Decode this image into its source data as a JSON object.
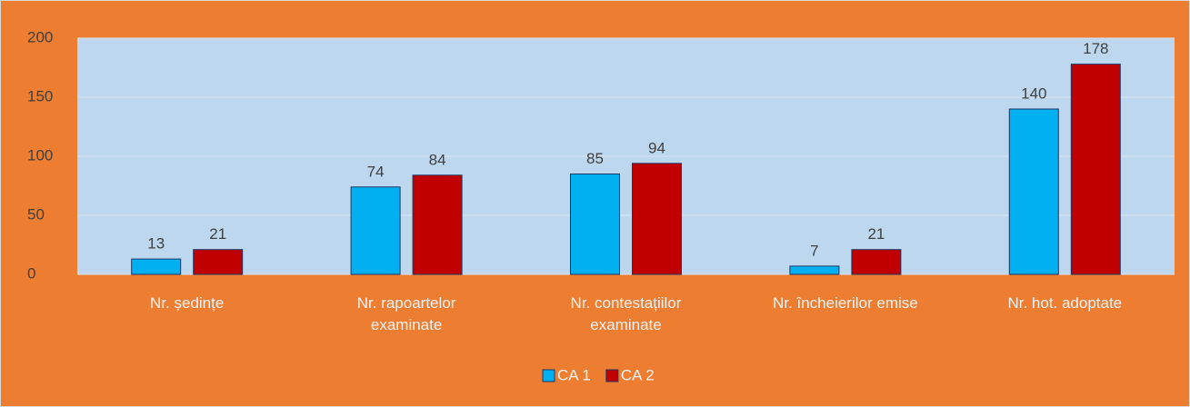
{
  "chart_data": {
    "type": "bar",
    "categories": [
      "Nr. ședințe",
      "Nr. rapoartelor examinate",
      "Nr. contestațiilor examinate",
      "Nr. încheierilor emise",
      "Nr. hot. adoptate"
    ],
    "series": [
      {
        "name": "CA 1",
        "color": "#00B0F0",
        "values": [
          13,
          74,
          85,
          7,
          140
        ]
      },
      {
        "name": "CA 2",
        "color": "#C00000",
        "values": [
          21,
          84,
          94,
          21,
          178
        ]
      }
    ],
    "ylim": [
      0,
      200
    ],
    "yticks": [
      0,
      50,
      100,
      150,
      200
    ],
    "grid": true,
    "legend": "bottom"
  }
}
